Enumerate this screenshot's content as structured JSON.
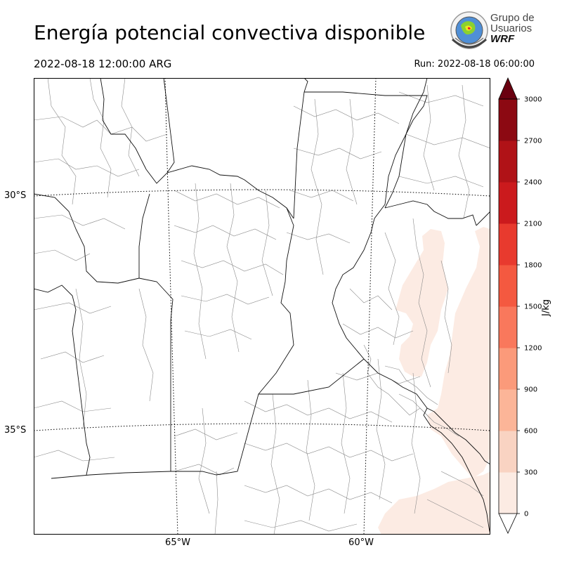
{
  "header": {
    "title": "Energía potencial convectiva disponible",
    "valid_time": "2022-08-18 12:00:00 ARG",
    "run_time": "Run: 2022-08-18 06:00:00"
  },
  "logo": {
    "line1": "Grupo de",
    "line2": "Usuarios",
    "line3": "WRF"
  },
  "map": {
    "lat_labels": [
      "30°S",
      "35°S"
    ],
    "lon_labels": [
      "65°W",
      "60°W"
    ]
  },
  "colorbar": {
    "unit": "J/kg",
    "ticks": [
      "0",
      "300",
      "600",
      "900",
      "1200",
      "1500",
      "1800",
      "2100",
      "2400",
      "2700",
      "3000"
    ],
    "colors": [
      "#fcebe3",
      "#f9d3c2",
      "#fcb598",
      "#fb9a7a",
      "#f9785c",
      "#f45940",
      "#e83a2e",
      "#cb1a1d",
      "#b01217",
      "#8c0912",
      "#6a0010"
    ]
  },
  "chart_data": {
    "type": "heatmap",
    "title": "Energía potencial convectiva disponible",
    "variable_unit": "J/kg",
    "levels": [
      0,
      300,
      600,
      900,
      1200,
      1500,
      1800,
      2100,
      2400,
      2700,
      3000
    ],
    "regions_above_zero": [
      {
        "area": "east of 60°W near 31–33°S",
        "level_range": [
          0,
          300
        ]
      },
      {
        "area": "Atlantic coast southeast of 35°S",
        "level_range": [
          0,
          300
        ]
      },
      {
        "area": "southeast corner near 37°S",
        "level_range": [
          0,
          300
        ]
      }
    ]
  }
}
